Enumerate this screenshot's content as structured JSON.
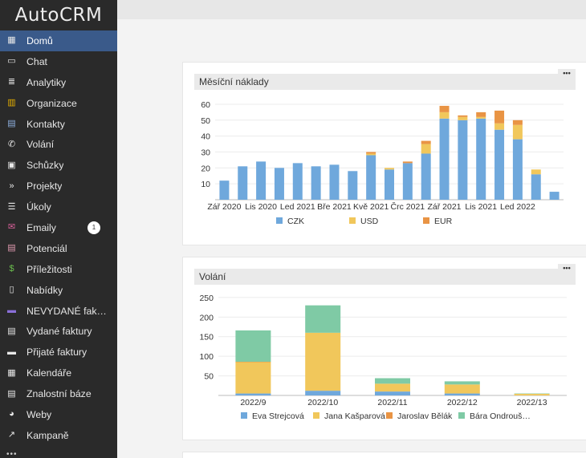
{
  "app": {
    "logo": "AutoCRM"
  },
  "sidebar": {
    "items": [
      {
        "label": "Domů",
        "icon": "dashboard-icon",
        "glyph": "▦",
        "active": true
      },
      {
        "label": "Chat",
        "icon": "monitor-icon",
        "glyph": "▭"
      },
      {
        "label": "Analytiky",
        "icon": "database-icon",
        "glyph": "≣"
      },
      {
        "label": "Organizace",
        "icon": "building-icon",
        "glyph": "▥",
        "color": "#e8b100"
      },
      {
        "label": "Kontakty",
        "icon": "contact-card-icon",
        "glyph": "▤",
        "color": "#8fb0e0"
      },
      {
        "label": "Volání",
        "icon": "phone-icon",
        "glyph": "✆"
      },
      {
        "label": "Schůzky",
        "icon": "calendar-check-icon",
        "glyph": "▣"
      },
      {
        "label": "Projekty",
        "icon": "double-chevron-icon",
        "glyph": "»"
      },
      {
        "label": "Úkoly",
        "icon": "task-list-icon",
        "glyph": "☰"
      },
      {
        "label": "Emaily",
        "icon": "envelope-icon",
        "glyph": "✉",
        "color": "#d9609a",
        "badge": "1"
      },
      {
        "label": "Potenciál",
        "icon": "id-card-icon",
        "glyph": "▤",
        "color": "#e29ab0"
      },
      {
        "label": "Příležitosti",
        "icon": "dollar-icon",
        "glyph": "$",
        "color": "#6bbf4e"
      },
      {
        "label": "Nabídky",
        "icon": "document-icon",
        "glyph": "▯"
      },
      {
        "label": "NEVYDANÉ faktury",
        "icon": "inbox-icon",
        "glyph": "▬",
        "color": "#8a6fd8"
      },
      {
        "label": "Vydané faktury",
        "icon": "invoice-icon",
        "glyph": "▤"
      },
      {
        "label": "Přijaté faktury",
        "icon": "archive-icon",
        "glyph": "▬"
      },
      {
        "label": "Kalendáře",
        "icon": "calendar-icon",
        "glyph": "▦"
      },
      {
        "label": "Znalostní báze",
        "icon": "book-icon",
        "glyph": "▤"
      },
      {
        "label": "Weby",
        "icon": "globe-icon",
        "glyph": "◕"
      },
      {
        "label": "Kampaně",
        "icon": "chart-line-icon",
        "glyph": "↗"
      }
    ],
    "more": "•••"
  },
  "panels": [
    {
      "title": "Měsíční náklady",
      "menu": "•••"
    },
    {
      "title": "Volání",
      "menu": "•••"
    }
  ],
  "chart_data": [
    {
      "type": "bar",
      "stacked": true,
      "title": "Měsíční náklady",
      "ylim": [
        0,
        62
      ],
      "yticks": [
        10,
        20,
        30,
        40,
        50,
        60
      ],
      "xtick_labels": [
        {
          "index": 0,
          "label": "Zář 2020"
        },
        {
          "index": 2,
          "label": "Lis 2020"
        },
        {
          "index": 4,
          "label": "Led 2021"
        },
        {
          "index": 6,
          "label": "Bře 2021"
        },
        {
          "index": 8,
          "label": "Kvě 2021"
        },
        {
          "index": 10,
          "label": "Črc 2021"
        },
        {
          "index": 12,
          "label": "Zář 2021"
        },
        {
          "index": 14,
          "label": "Lis 2021"
        },
        {
          "index": 16,
          "label": "Led 2022"
        }
      ],
      "series": [
        {
          "name": "CZK",
          "color": "#6fa8dc",
          "values": [
            12,
            21,
            24,
            20,
            23,
            21,
            22,
            18,
            28,
            19,
            23,
            29,
            51,
            50,
            51,
            44,
            38,
            16,
            5
          ]
        },
        {
          "name": "USD",
          "color": "#f1c75b",
          "values": [
            0,
            0,
            0,
            0,
            0,
            0,
            0,
            0,
            1,
            1,
            0,
            6,
            4,
            2,
            1,
            4,
            9,
            3,
            0
          ]
        },
        {
          "name": "EUR",
          "color": "#e99444",
          "values": [
            0,
            0,
            0,
            0,
            0,
            0,
            0,
            0,
            1,
            0,
            1,
            2,
            4,
            1,
            3,
            8,
            3,
            0,
            0
          ]
        }
      ],
      "legend": "bottom",
      "grid": true
    },
    {
      "type": "bar",
      "stacked": true,
      "title": "Volání",
      "ylim": [
        0,
        258
      ],
      "yticks": [
        50,
        100,
        150,
        200,
        250
      ],
      "categories": [
        "2022/9",
        "2022/10",
        "2022/11",
        "2022/12",
        "2022/13"
      ],
      "series": [
        {
          "name": "Eva Strejcová",
          "color": "#6fa8dc",
          "values": [
            5,
            12,
            10,
            5,
            0
          ]
        },
        {
          "name": "Jana Kašparová",
          "color": "#f1c75b",
          "values": [
            80,
            148,
            20,
            23,
            4
          ]
        },
        {
          "name": "Jaroslav Bělák",
          "color": "#e99444",
          "values": [
            1,
            0,
            0,
            0,
            0
          ]
        },
        {
          "name": "Bára Ondrouš…",
          "color": "#7fcaa5",
          "values": [
            80,
            70,
            14,
            8,
            1
          ]
        }
      ],
      "legend": "bottom",
      "grid": true
    }
  ]
}
